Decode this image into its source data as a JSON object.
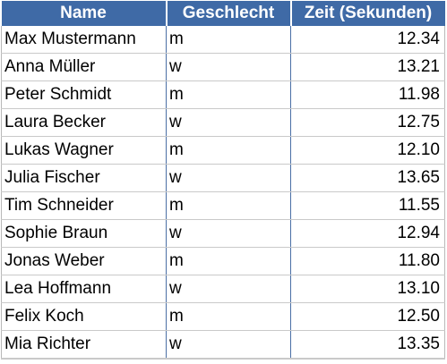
{
  "table": {
    "headers": {
      "name": "Name",
      "gender": "Geschlecht",
      "time": "Zeit (Sekunden)"
    },
    "rows": [
      {
        "name": "Max Mustermann",
        "gender": "m",
        "time": "12.34"
      },
      {
        "name": "Anna Müller",
        "gender": "w",
        "time": "13.21"
      },
      {
        "name": "Peter Schmidt",
        "gender": "m",
        "time": "11.98"
      },
      {
        "name": "Laura Becker",
        "gender": "w",
        "time": "12.75"
      },
      {
        "name": "Lukas Wagner",
        "gender": "m",
        "time": "12.10"
      },
      {
        "name": "Julia Fischer",
        "gender": "w",
        "time": "13.65"
      },
      {
        "name": "Tim Schneider",
        "gender": "m",
        "time": "11.55"
      },
      {
        "name": "Sophie Braun",
        "gender": "w",
        "time": "12.94"
      },
      {
        "name": "Jonas Weber",
        "gender": "m",
        "time": "11.80"
      },
      {
        "name": "Lea Hoffmann",
        "gender": "w",
        "time": "13.10"
      },
      {
        "name": "Felix Koch",
        "gender": "m",
        "time": "12.50"
      },
      {
        "name": "Mia Richter",
        "gender": "w",
        "time": "13.35"
      }
    ]
  },
  "colors": {
    "header_background": "#3f6aa6",
    "header_text": "#ffffff"
  }
}
